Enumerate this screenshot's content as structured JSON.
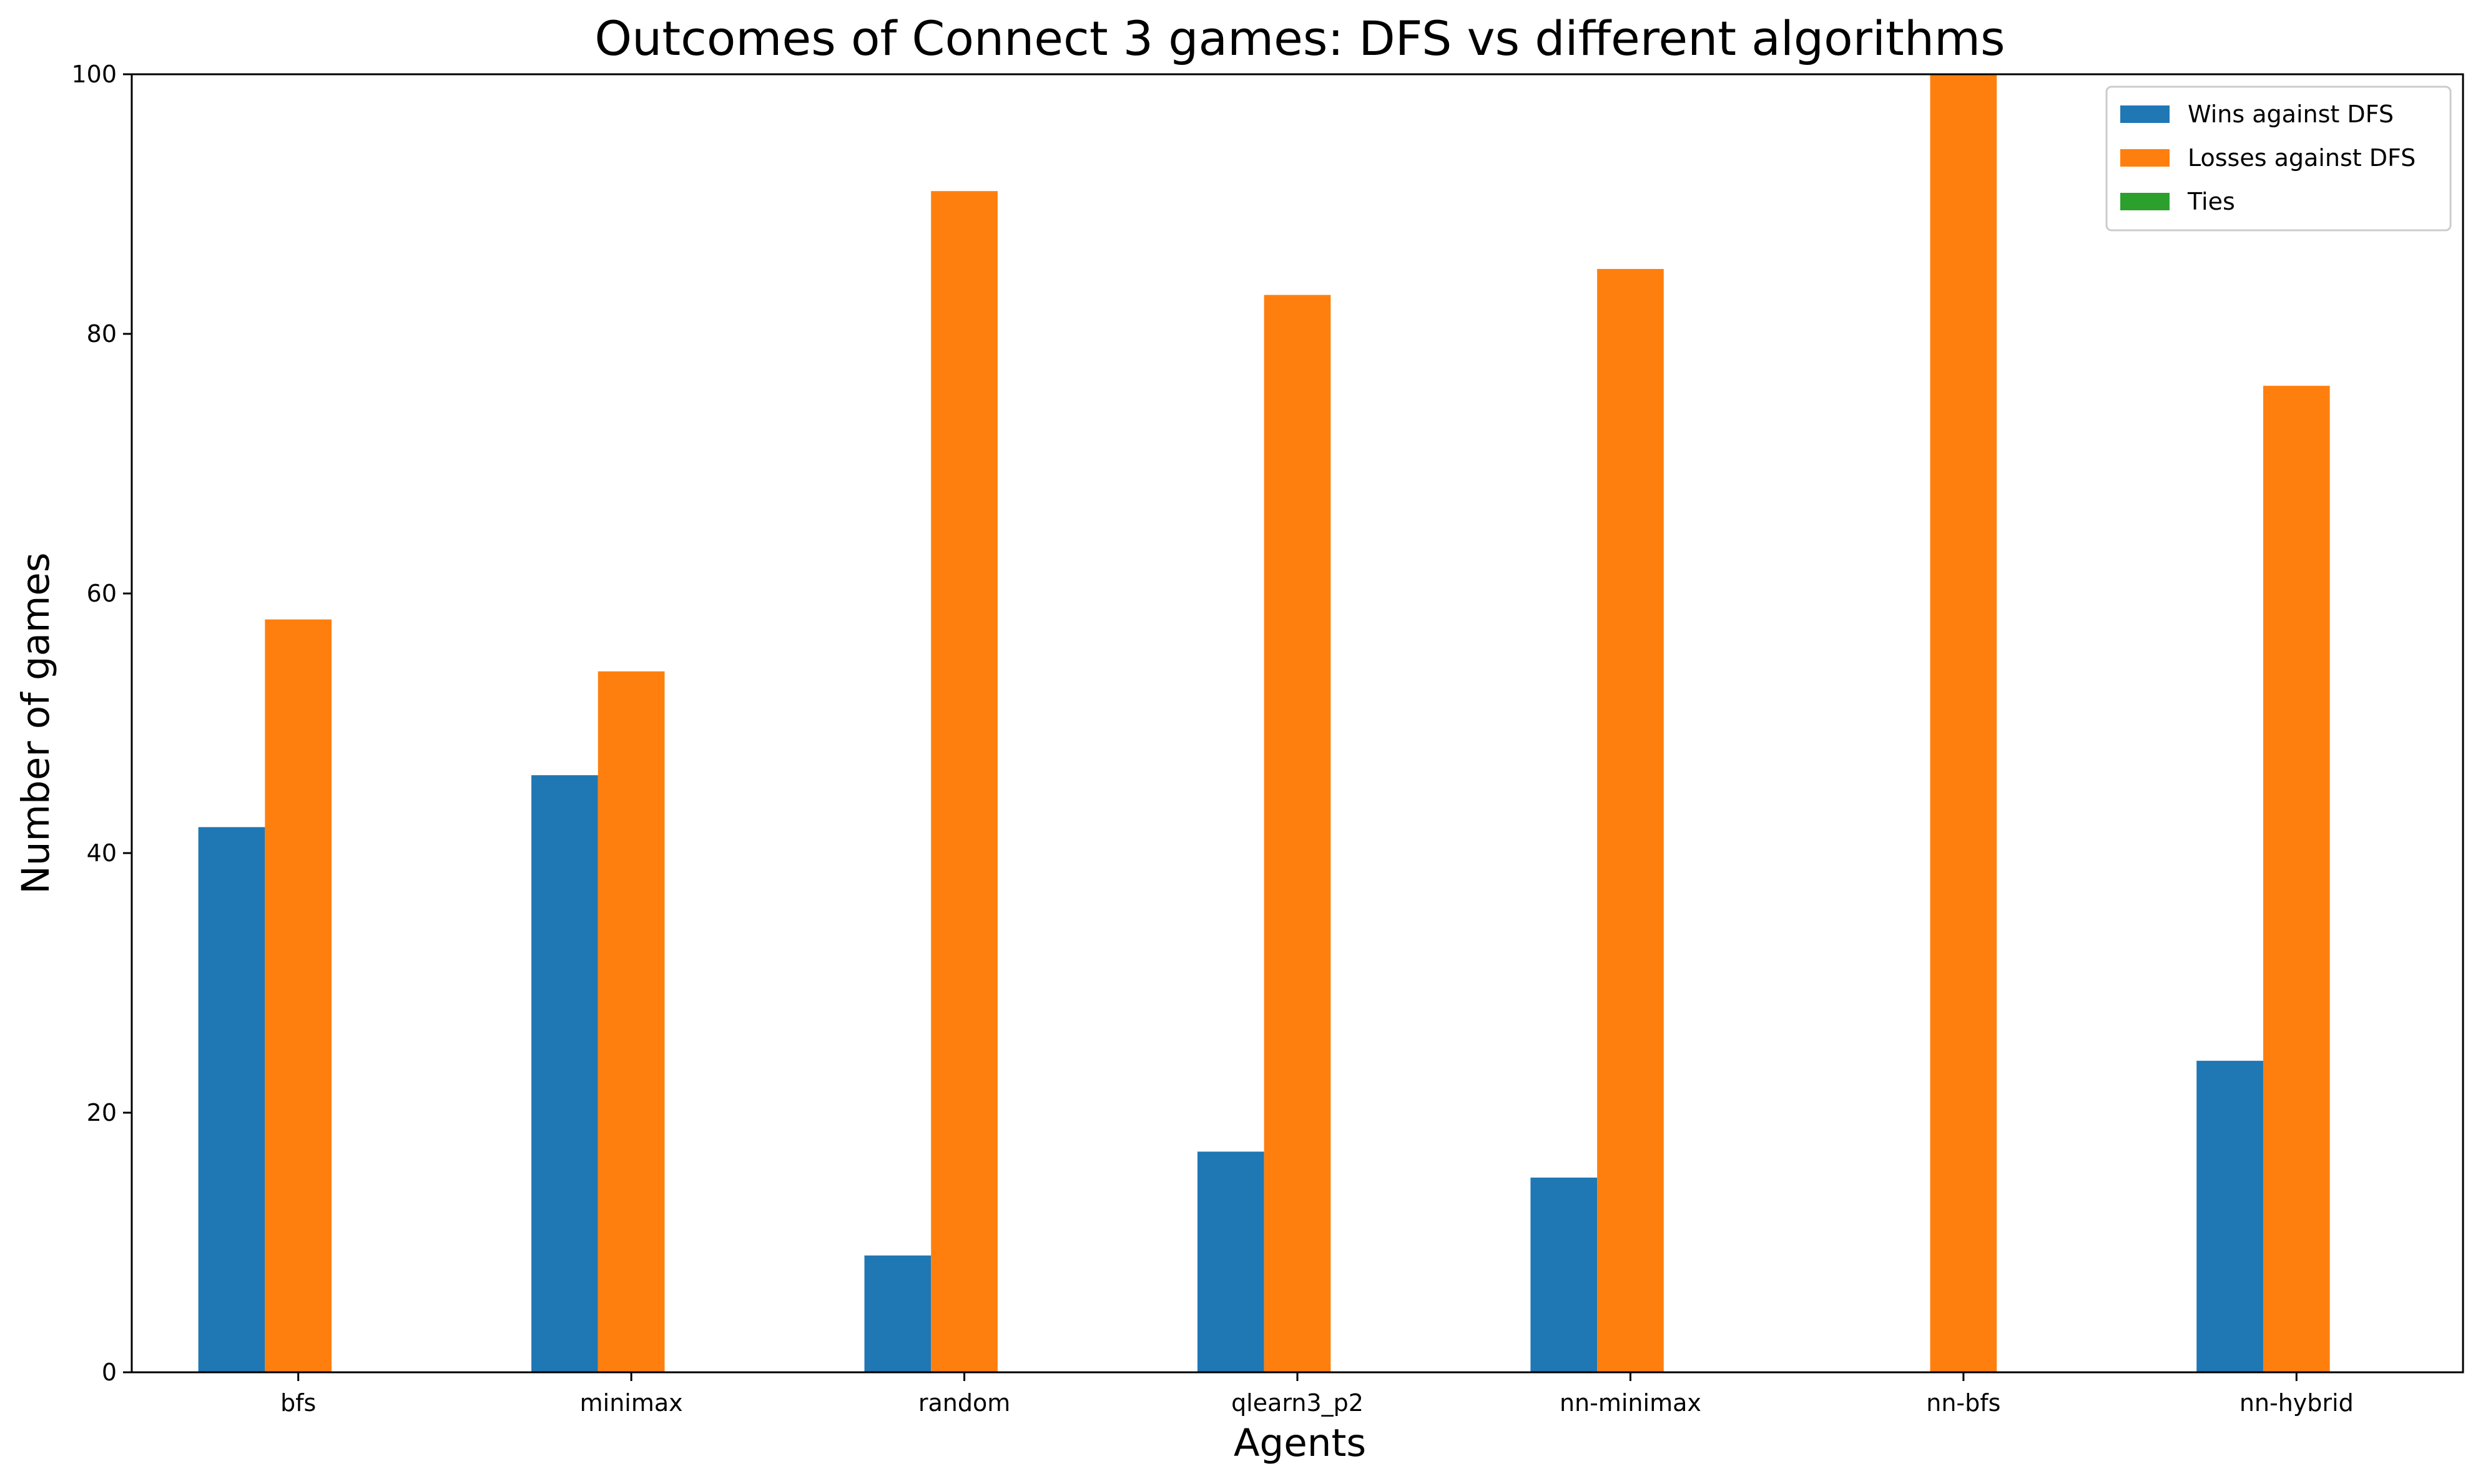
{
  "chart_data": {
    "type": "bar",
    "title": "Outcomes of Connect 3 games: DFS vs different algorithms",
    "xlabel": "Agents",
    "ylabel": "Number of games",
    "categories": [
      "bfs",
      "minimax",
      "random",
      "qlearn3_p2",
      "nn-minimax",
      "nn-bfs",
      "nn-hybrid"
    ],
    "series": [
      {
        "name": "Wins against DFS",
        "color": "#1f77b4",
        "values": [
          42,
          46,
          9,
          17,
          15,
          0,
          24
        ]
      },
      {
        "name": "Losses against DFS",
        "color": "#ff7f0e",
        "values": [
          58,
          54,
          91,
          83,
          85,
          100,
          76
        ]
      },
      {
        "name": "Ties",
        "color": "#2ca02c",
        "values": [
          0,
          0,
          0,
          0,
          0,
          0,
          0
        ]
      }
    ],
    "ylim": [
      0,
      100
    ],
    "yticks": [
      0,
      20,
      40,
      60,
      80,
      100
    ],
    "grid": false,
    "legend_position": "top-right"
  }
}
